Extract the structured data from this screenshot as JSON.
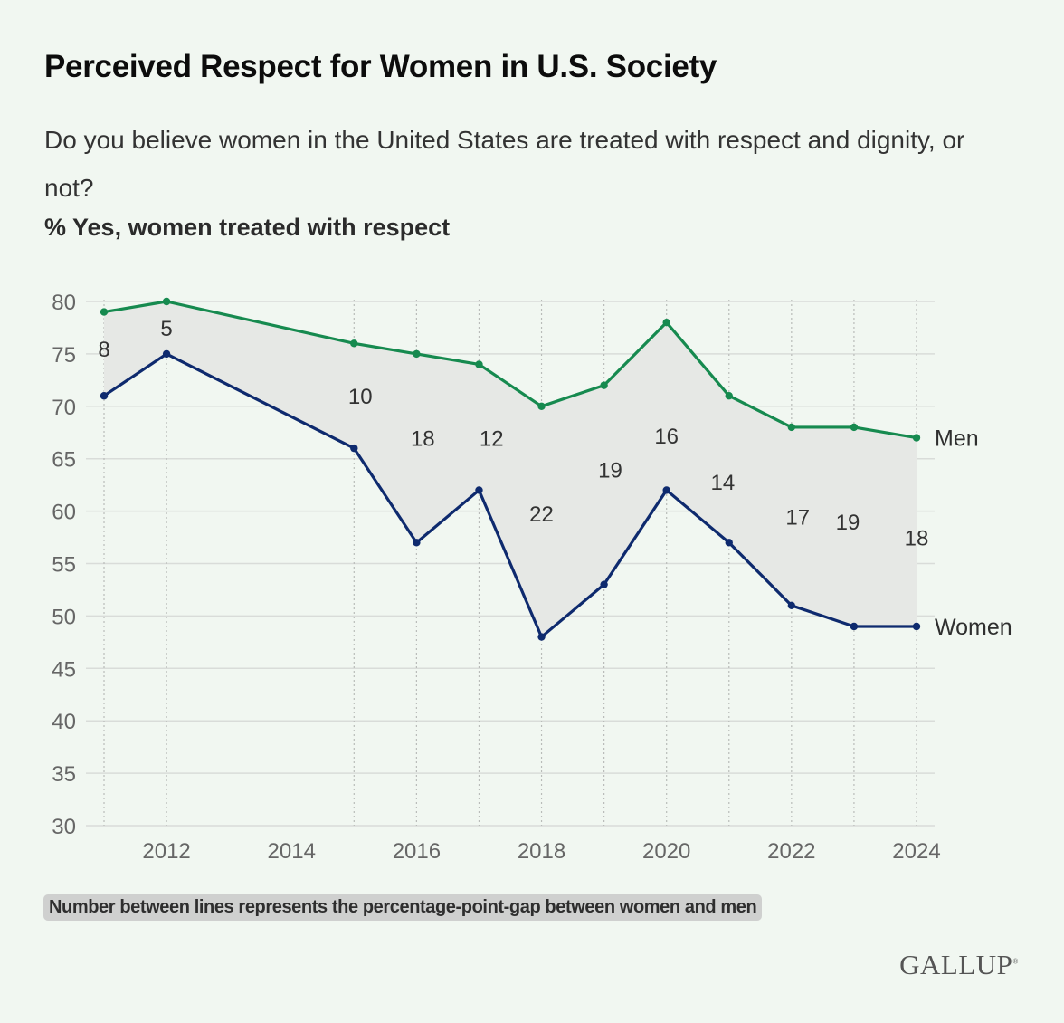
{
  "header": {
    "title": "Perceived Respect for Women in U.S. Society",
    "subtitle": "Do you believe women in the United States are treated with respect and dignity, or not?",
    "measure": "% Yes, women treated with respect"
  },
  "footer": {
    "note": "Number between lines represents the percentage-point-gap between women and men",
    "brand": "GALLUP"
  },
  "chart_data": {
    "type": "line",
    "title": "Perceived Respect for Women in U.S. Society",
    "xlabel": "",
    "ylabel": "% Yes, women treated with respect",
    "x": [
      2011,
      2012,
      2015,
      2016,
      2017,
      2018,
      2019,
      2020,
      2021,
      2022,
      2023,
      2024
    ],
    "xticks": [
      2012,
      2014,
      2016,
      2018,
      2020,
      2022,
      2024
    ],
    "xlim": [
      2011,
      2024
    ],
    "ylim": [
      30,
      80
    ],
    "yticks": [
      30,
      35,
      40,
      45,
      50,
      55,
      60,
      65,
      70,
      75,
      80
    ],
    "grid": true,
    "legend": "inline-right",
    "series": [
      {
        "name": "Men",
        "color": "#168a4f",
        "values": [
          79,
          80,
          76,
          75,
          74,
          70,
          72,
          78,
          71,
          68,
          68,
          67
        ]
      },
      {
        "name": "Women",
        "color": "#0e2a6e",
        "values": [
          71,
          75,
          66,
          57,
          62,
          48,
          53,
          62,
          57,
          51,
          49,
          49
        ]
      }
    ],
    "gap_labels": [
      8,
      5,
      10,
      18,
      12,
      22,
      19,
      16,
      14,
      17,
      19,
      18
    ],
    "gap_label_y": [
      75.5,
      77.5,
      71,
      67,
      67,
      59.8,
      64,
      67.2,
      62.8,
      59.5,
      59,
      57.5
    ],
    "gap_label_dx": [
      0,
      0,
      0.1,
      0.1,
      0.2,
      0,
      0.1,
      0,
      -0.1,
      0.1,
      -0.1,
      0
    ],
    "fill_color": "#e6e8e5",
    "gridline_color": "#d9dcd9"
  }
}
